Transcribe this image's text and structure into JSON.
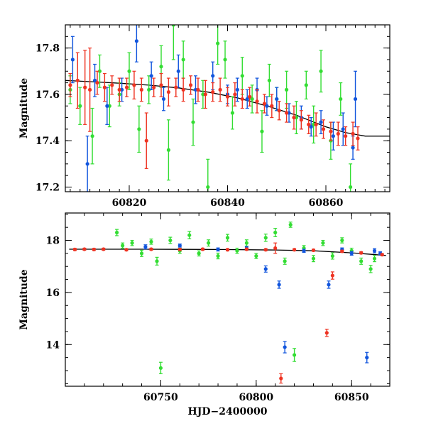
{
  "chart_data": [
    {
      "type": "scatter",
      "panel": "top",
      "title": "",
      "xlabel": "",
      "ylabel": "Magnitude",
      "xlim": [
        60807,
        60873
      ],
      "ylim": [
        17.9,
        17.18
      ],
      "y_inverted": true,
      "xticks": [
        60820,
        60840,
        60860
      ],
      "xtick_labels": [
        "60820",
        "60840",
        "60860"
      ],
      "yticks": [
        17.2,
        17.4,
        17.6,
        17.8
      ],
      "ytick_labels": [
        "17.2",
        "17.4",
        "17.6",
        "17.8"
      ],
      "x_minor_step": 2,
      "y_minor_step": 0.05,
      "grid": false,
      "colors": {
        "green": "#33dd33",
        "blue": "#1155dd",
        "red": "#ee3322",
        "model": "#000000"
      },
      "model_curve": {
        "x": [
          60807,
          60812,
          60818,
          60824,
          60830,
          60836,
          60842,
          60848,
          60854,
          60860,
          60864,
          60868,
          60873
        ],
        "y": [
          17.66,
          17.655,
          17.648,
          17.64,
          17.628,
          17.61,
          17.585,
          17.55,
          17.51,
          17.46,
          17.435,
          17.42,
          17.42
        ]
      },
      "series": [
        {
          "color": "green",
          "x": [
            60808,
            60810,
            60812.5,
            60814,
            60816,
            60818,
            60820,
            60822,
            60824,
            60826.5,
            60828,
            60829,
            60831,
            60833,
            60835,
            60836,
            60838,
            60839.5,
            60841,
            60843,
            60845,
            60847,
            60848.5,
            60850,
            60852,
            60854,
            60856,
            60857.5,
            60859,
            60861,
            60863,
            60865
          ],
          "y": [
            17.62,
            17.55,
            17.42,
            17.7,
            17.55,
            17.6,
            17.7,
            17.45,
            17.62,
            17.72,
            17.36,
            17.9,
            17.75,
            17.48,
            17.6,
            17.2,
            17.82,
            17.75,
            17.52,
            17.68,
            17.58,
            17.44,
            17.66,
            17.58,
            17.62,
            17.5,
            17.64,
            17.47,
            17.7,
            17.4,
            17.58,
            17.2
          ],
          "err": [
            0.06,
            0.08,
            0.12,
            0.07,
            0.09,
            0.05,
            0.08,
            0.1,
            0.06,
            0.09,
            0.13,
            0.15,
            0.08,
            0.1,
            0.06,
            0.12,
            0.09,
            0.08,
            0.07,
            0.08,
            0.06,
            0.09,
            0.07,
            0.05,
            0.08,
            0.07,
            0.06,
            0.08,
            0.09,
            0.08,
            0.07,
            0.1
          ]
        },
        {
          "color": "blue",
          "x": [
            60808.5,
            60811.5,
            60813,
            60815.5,
            60818.5,
            60821.5,
            60824.5,
            60827,
            60830,
            60833.5,
            60837,
            60840,
            60842,
            60844,
            60846,
            60848,
            60850,
            60852.5,
            60855,
            60857,
            60859,
            60861.5,
            60863.5,
            60865.5,
            60866
          ],
          "y": [
            17.75,
            17.3,
            17.66,
            17.55,
            17.62,
            17.83,
            17.68,
            17.58,
            17.7,
            17.62,
            17.68,
            17.6,
            17.62,
            17.58,
            17.62,
            17.55,
            17.58,
            17.52,
            17.5,
            17.46,
            17.48,
            17.42,
            17.45,
            17.37,
            17.58
          ],
          "err": [
            0.1,
            0.12,
            0.07,
            0.08,
            0.05,
            0.09,
            0.06,
            0.05,
            0.07,
            0.06,
            0.06,
            0.04,
            0.05,
            0.04,
            0.05,
            0.04,
            0.05,
            0.04,
            0.05,
            0.04,
            0.05,
            0.06,
            0.07,
            0.05,
            0.12
          ]
        },
        {
          "color": "red",
          "x": [
            60808,
            60809.5,
            60811,
            60812,
            60813.5,
            60815,
            60816.5,
            60818,
            60819.5,
            60821,
            60822.5,
            60823.5,
            60825,
            60826.5,
            60828,
            60829.5,
            60831,
            60832.5,
            60834,
            60835.5,
            60837,
            60838.5,
            60840,
            60841.5,
            60843,
            60844.5,
            60846,
            60847.5,
            60849,
            60850.5,
            60852,
            60853.5,
            60855,
            60856.5,
            60858,
            60859.5,
            60861,
            60862.5,
            60864,
            60865.5,
            60866.5
          ],
          "y": [
            17.64,
            17.66,
            17.63,
            17.62,
            17.65,
            17.63,
            17.64,
            17.62,
            17.63,
            17.64,
            17.62,
            17.4,
            17.63,
            17.64,
            17.61,
            17.63,
            17.62,
            17.64,
            17.62,
            17.6,
            17.61,
            17.62,
            17.59,
            17.6,
            17.58,
            17.59,
            17.57,
            17.56,
            17.55,
            17.53,
            17.52,
            17.5,
            17.49,
            17.47,
            17.47,
            17.45,
            17.44,
            17.43,
            17.42,
            17.43,
            17.41
          ],
          "err": [
            0.05,
            0.12,
            0.16,
            0.18,
            0.05,
            0.06,
            0.04,
            0.05,
            0.04,
            0.06,
            0.05,
            0.12,
            0.04,
            0.05,
            0.06,
            0.04,
            0.05,
            0.04,
            0.05,
            0.06,
            0.04,
            0.05,
            0.04,
            0.05,
            0.04,
            0.04,
            0.05,
            0.04,
            0.05,
            0.04,
            0.04,
            0.05,
            0.04,
            0.04,
            0.05,
            0.04,
            0.04,
            0.05,
            0.04,
            0.05,
            0.05
          ]
        }
      ]
    },
    {
      "type": "scatter",
      "panel": "bottom",
      "title": "",
      "xlabel": "HJD−2400000",
      "ylabel": "Magnitude",
      "xlim": [
        60700,
        60870
      ],
      "ylim": [
        19.05,
        12.4
      ],
      "y_inverted": true,
      "xticks": [
        60750,
        60800,
        60850
      ],
      "xtick_labels": [
        "60750",
        "60800",
        "60850"
      ],
      "yticks": [
        14,
        16,
        18
      ],
      "ytick_labels": [
        "14",
        "16",
        "18"
      ],
      "x_minor_step": 10,
      "y_minor_step": 0.5,
      "grid": false,
      "colors": {
        "green": "#33dd33",
        "blue": "#1155dd",
        "red": "#ee3322",
        "model": "#000000"
      },
      "model_curve": {
        "x": [
          60702,
          60740,
          60780,
          60810,
          60830,
          60850,
          60868
        ],
        "y": [
          17.66,
          17.66,
          17.65,
          17.63,
          17.6,
          17.52,
          17.42
        ]
      },
      "series": [
        {
          "color": "green",
          "x": [
            60727,
            60730,
            60735,
            60740,
            60745,
            60748,
            60750,
            60755,
            60760,
            60765,
            60770,
            60775,
            60780,
            60785,
            60790,
            60795,
            60800,
            60805,
            60810,
            60815,
            60818,
            60820,
            60825,
            60830,
            60835,
            60840,
            60845,
            60850,
            60855,
            60860,
            60862
          ],
          "y": [
            18.3,
            17.8,
            17.9,
            17.5,
            17.95,
            17.2,
            13.1,
            18.0,
            17.6,
            18.2,
            17.5,
            17.9,
            17.4,
            18.1,
            17.6,
            17.9,
            17.4,
            18.1,
            18.3,
            17.2,
            18.6,
            13.6,
            17.7,
            17.3,
            17.9,
            17.4,
            18.0,
            17.6,
            17.2,
            16.9,
            17.3
          ],
          "err": [
            0.12,
            0.1,
            0.1,
            0.12,
            0.1,
            0.15,
            0.22,
            0.12,
            0.1,
            0.14,
            0.1,
            0.12,
            0.11,
            0.13,
            0.1,
            0.12,
            0.1,
            0.14,
            0.16,
            0.12,
            0.1,
            0.25,
            0.1,
            0.12,
            0.1,
            0.12,
            0.1,
            0.1,
            0.12,
            0.14,
            0.12
          ]
        },
        {
          "color": "blue",
          "x": [
            60742,
            60760,
            60780,
            60795,
            60805,
            60812,
            60815,
            60825,
            60838,
            60845,
            60850,
            60858,
            60862,
            60865
          ],
          "y": [
            17.75,
            17.8,
            17.65,
            17.7,
            16.9,
            16.3,
            13.9,
            17.6,
            16.3,
            17.65,
            17.5,
            13.5,
            17.6,
            17.5
          ],
          "err": [
            0.08,
            0.06,
            0.06,
            0.06,
            0.12,
            0.14,
            0.22,
            0.06,
            0.14,
            0.06,
            0.07,
            0.2,
            0.08,
            0.06
          ]
        },
        {
          "color": "red",
          "x": [
            60705,
            60710,
            60715,
            60720,
            60732,
            60745,
            60760,
            60772,
            60785,
            60795,
            60805,
            60810,
            60813,
            60820,
            60830,
            60837,
            60840,
            60845,
            60855,
            60866
          ],
          "y": [
            17.65,
            17.66,
            17.65,
            17.66,
            17.64,
            17.66,
            17.65,
            17.66,
            17.64,
            17.66,
            17.64,
            17.7,
            12.7,
            17.64,
            17.62,
            14.45,
            16.65,
            17.58,
            17.52,
            17.45
          ],
          "err": [
            0.04,
            0.04,
            0.04,
            0.04,
            0.04,
            0.04,
            0.04,
            0.04,
            0.04,
            0.04,
            0.04,
            0.2,
            0.18,
            0.04,
            0.04,
            0.14,
            0.14,
            0.04,
            0.04,
            0.04
          ]
        }
      ]
    }
  ]
}
